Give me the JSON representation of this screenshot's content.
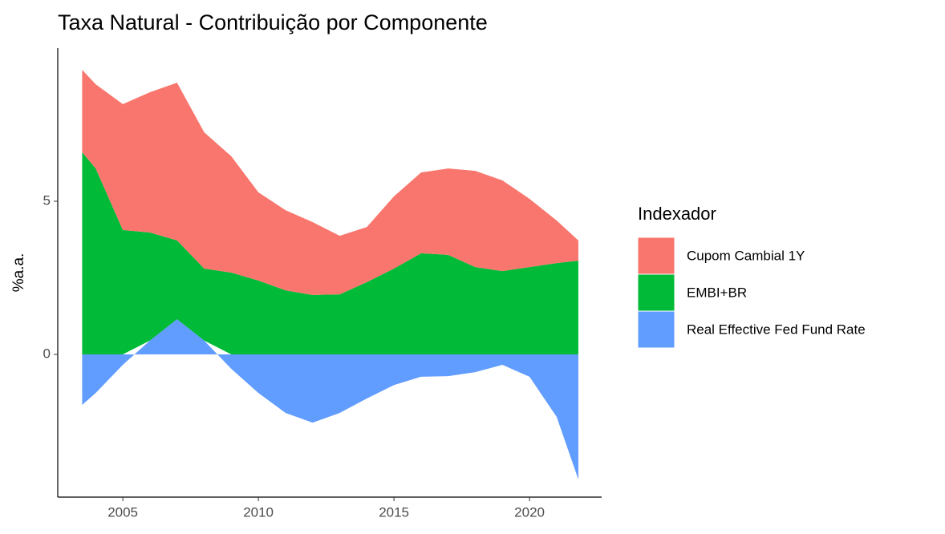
{
  "chart_data": {
    "type": "area",
    "stacked": true,
    "title": "Taxa Natural - Contribuição por Componente",
    "y_label": "%a.a.",
    "legend_title": "Indexador",
    "legend_position": "right",
    "grid": false,
    "x": [
      2003.5,
      2004,
      2005,
      2006,
      2007,
      2008,
      2009,
      2010,
      2011,
      2012,
      2013,
      2014,
      2015,
      2016,
      2017,
      2018,
      2019,
      2020,
      2021,
      2021.8
    ],
    "xlim": [
      2002.6,
      2022.66
    ],
    "xticks": [
      2005,
      2010,
      2015,
      2020
    ],
    "ylim": [
      -4.66,
      10.0
    ],
    "yticks": [
      0,
      5
    ],
    "series": [
      {
        "name": "Cupom Cambial 1Y",
        "color": "#f8766d",
        "values": [
          2.69,
          2.75,
          4.11,
          4.58,
          5.15,
          4.45,
          3.8,
          2.88,
          2.62,
          2.38,
          1.91,
          1.8,
          2.36,
          2.64,
          2.82,
          3.14,
          2.96,
          2.23,
          1.39,
          0.66
        ]
      },
      {
        "name": "EMBI+BR",
        "color": "#00ba38",
        "values": [
          6.6,
          6.07,
          4.06,
          3.53,
          2.57,
          2.35,
          2.67,
          2.41,
          2.09,
          1.94,
          1.96,
          2.36,
          2.8,
          3.3,
          3.25,
          2.85,
          2.72,
          2.85,
          2.98,
          3.06
        ]
      },
      {
        "name": "Real Effective Fed Fund Rate",
        "color": "#619cff",
        "values": [
          -1.65,
          -1.26,
          -0.34,
          0.45,
          1.15,
          0.45,
          -0.47,
          -1.26,
          -1.91,
          -2.23,
          -1.91,
          -1.44,
          -1.0,
          -0.73,
          -0.71,
          -0.58,
          -0.34,
          -0.73,
          -2.04,
          -4.08
        ]
      }
    ]
  }
}
